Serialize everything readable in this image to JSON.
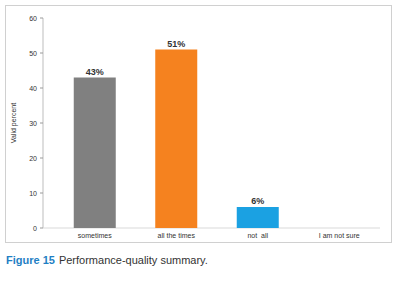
{
  "chart_data": {
    "type": "bar",
    "caption": {
      "label": "Figure 15",
      "text": "Performance-quality summary."
    },
    "y_label": "Valid percent",
    "categories": [
      "sometimes",
      "all the times",
      "not  all",
      "I am not sure"
    ],
    "values": [
      43,
      51,
      6,
      null
    ],
    "value_labels": [
      "43%",
      "51%",
      "6%",
      null
    ],
    "colors": [
      "#808080",
      "#f5821f",
      "#1ba1e2",
      "#4472c4"
    ],
    "ylim": [
      0,
      60
    ],
    "yticks": [
      0,
      10,
      20,
      30,
      40,
      50,
      60
    ],
    "grid": false,
    "data_labels": true
  }
}
